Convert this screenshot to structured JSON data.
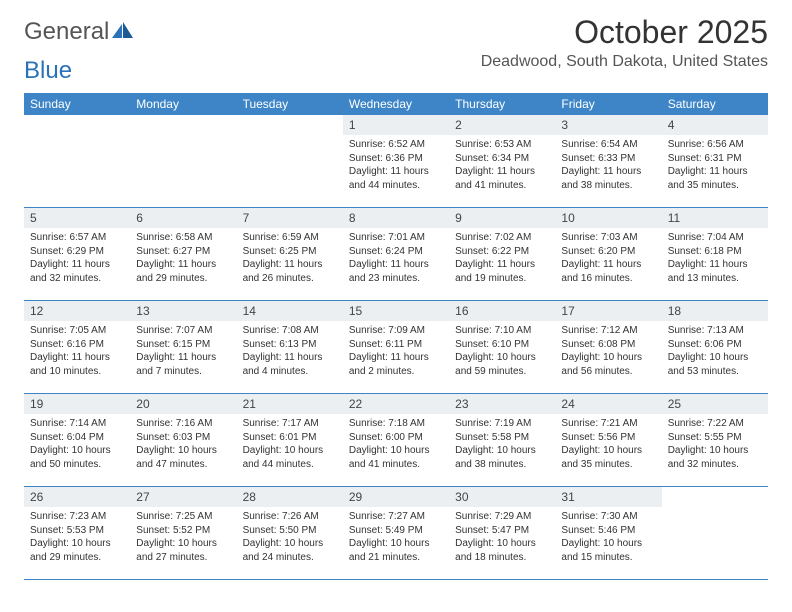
{
  "logo": {
    "part1": "General",
    "part2": "Blue"
  },
  "header": {
    "title": "October 2025",
    "location": "Deadwood, South Dakota, United States"
  },
  "colors": {
    "brand_blue": "#3d85c6",
    "daynum_bg": "#eceff1",
    "text": "#333333",
    "white": "#ffffff"
  },
  "weekdays": [
    "Sunday",
    "Monday",
    "Tuesday",
    "Wednesday",
    "Thursday",
    "Friday",
    "Saturday"
  ],
  "strings": {
    "sunrise_prefix": "Sunrise: ",
    "sunset_prefix": "Sunset: ",
    "daylight_prefix": "Daylight: "
  },
  "weeks": [
    [
      {
        "empty": true
      },
      {
        "empty": true
      },
      {
        "empty": true
      },
      {
        "num": "1",
        "sunrise": "6:52 AM",
        "sunset": "6:36 PM",
        "daylight": "11 hours and 44 minutes."
      },
      {
        "num": "2",
        "sunrise": "6:53 AM",
        "sunset": "6:34 PM",
        "daylight": "11 hours and 41 minutes."
      },
      {
        "num": "3",
        "sunrise": "6:54 AM",
        "sunset": "6:33 PM",
        "daylight": "11 hours and 38 minutes."
      },
      {
        "num": "4",
        "sunrise": "6:56 AM",
        "sunset": "6:31 PM",
        "daylight": "11 hours and 35 minutes."
      }
    ],
    [
      {
        "num": "5",
        "sunrise": "6:57 AM",
        "sunset": "6:29 PM",
        "daylight": "11 hours and 32 minutes."
      },
      {
        "num": "6",
        "sunrise": "6:58 AM",
        "sunset": "6:27 PM",
        "daylight": "11 hours and 29 minutes."
      },
      {
        "num": "7",
        "sunrise": "6:59 AM",
        "sunset": "6:25 PM",
        "daylight": "11 hours and 26 minutes."
      },
      {
        "num": "8",
        "sunrise": "7:01 AM",
        "sunset": "6:24 PM",
        "daylight": "11 hours and 23 minutes."
      },
      {
        "num": "9",
        "sunrise": "7:02 AM",
        "sunset": "6:22 PM",
        "daylight": "11 hours and 19 minutes."
      },
      {
        "num": "10",
        "sunrise": "7:03 AM",
        "sunset": "6:20 PM",
        "daylight": "11 hours and 16 minutes."
      },
      {
        "num": "11",
        "sunrise": "7:04 AM",
        "sunset": "6:18 PM",
        "daylight": "11 hours and 13 minutes."
      }
    ],
    [
      {
        "num": "12",
        "sunrise": "7:05 AM",
        "sunset": "6:16 PM",
        "daylight": "11 hours and 10 minutes."
      },
      {
        "num": "13",
        "sunrise": "7:07 AM",
        "sunset": "6:15 PM",
        "daylight": "11 hours and 7 minutes."
      },
      {
        "num": "14",
        "sunrise": "7:08 AM",
        "sunset": "6:13 PM",
        "daylight": "11 hours and 4 minutes."
      },
      {
        "num": "15",
        "sunrise": "7:09 AM",
        "sunset": "6:11 PM",
        "daylight": "11 hours and 2 minutes."
      },
      {
        "num": "16",
        "sunrise": "7:10 AM",
        "sunset": "6:10 PM",
        "daylight": "10 hours and 59 minutes."
      },
      {
        "num": "17",
        "sunrise": "7:12 AM",
        "sunset": "6:08 PM",
        "daylight": "10 hours and 56 minutes."
      },
      {
        "num": "18",
        "sunrise": "7:13 AM",
        "sunset": "6:06 PM",
        "daylight": "10 hours and 53 minutes."
      }
    ],
    [
      {
        "num": "19",
        "sunrise": "7:14 AM",
        "sunset": "6:04 PM",
        "daylight": "10 hours and 50 minutes."
      },
      {
        "num": "20",
        "sunrise": "7:16 AM",
        "sunset": "6:03 PM",
        "daylight": "10 hours and 47 minutes."
      },
      {
        "num": "21",
        "sunrise": "7:17 AM",
        "sunset": "6:01 PM",
        "daylight": "10 hours and 44 minutes."
      },
      {
        "num": "22",
        "sunrise": "7:18 AM",
        "sunset": "6:00 PM",
        "daylight": "10 hours and 41 minutes."
      },
      {
        "num": "23",
        "sunrise": "7:19 AM",
        "sunset": "5:58 PM",
        "daylight": "10 hours and 38 minutes."
      },
      {
        "num": "24",
        "sunrise": "7:21 AM",
        "sunset": "5:56 PM",
        "daylight": "10 hours and 35 minutes."
      },
      {
        "num": "25",
        "sunrise": "7:22 AM",
        "sunset": "5:55 PM",
        "daylight": "10 hours and 32 minutes."
      }
    ],
    [
      {
        "num": "26",
        "sunrise": "7:23 AM",
        "sunset": "5:53 PM",
        "daylight": "10 hours and 29 minutes."
      },
      {
        "num": "27",
        "sunrise": "7:25 AM",
        "sunset": "5:52 PM",
        "daylight": "10 hours and 27 minutes."
      },
      {
        "num": "28",
        "sunrise": "7:26 AM",
        "sunset": "5:50 PM",
        "daylight": "10 hours and 24 minutes."
      },
      {
        "num": "29",
        "sunrise": "7:27 AM",
        "sunset": "5:49 PM",
        "daylight": "10 hours and 21 minutes."
      },
      {
        "num": "30",
        "sunrise": "7:29 AM",
        "sunset": "5:47 PM",
        "daylight": "10 hours and 18 minutes."
      },
      {
        "num": "31",
        "sunrise": "7:30 AM",
        "sunset": "5:46 PM",
        "daylight": "10 hours and 15 minutes."
      },
      {
        "empty": true
      }
    ]
  ]
}
